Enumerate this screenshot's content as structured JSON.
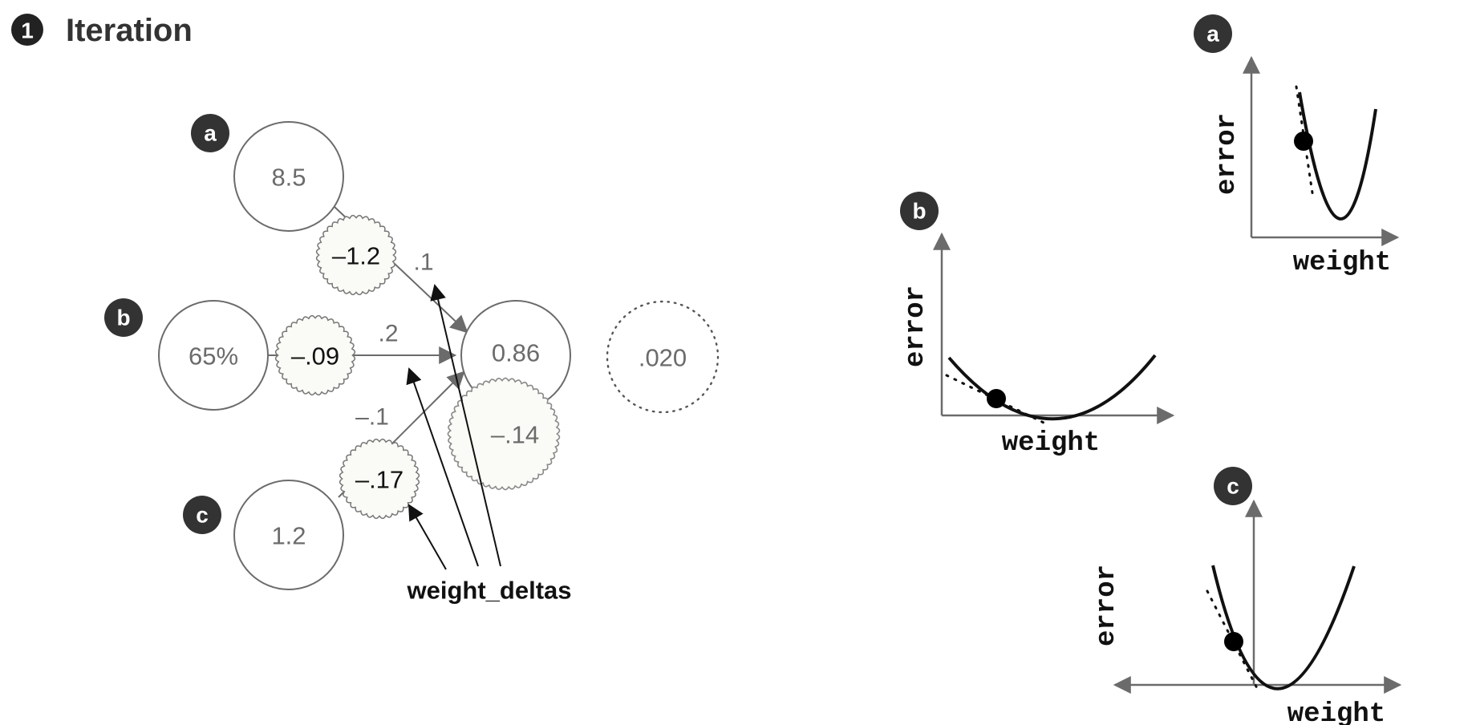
{
  "header": {
    "step_number": "1",
    "title": "Iteration"
  },
  "network": {
    "inputs": [
      {
        "badge": "a",
        "value": "8.5"
      },
      {
        "badge": "b",
        "value": "65%"
      },
      {
        "badge": "c",
        "value": "1.2"
      }
    ],
    "weight_deltas": [
      "–1.2",
      "–.09",
      "–.17"
    ],
    "weights": [
      ".1",
      ".2",
      "–.1"
    ],
    "output": {
      "prediction": "0.86",
      "delta": "–.14",
      "error": ".020"
    },
    "caption": "weight_deltas"
  },
  "plots": [
    {
      "badge": "a",
      "ylabel": "error",
      "xlabel": "weight"
    },
    {
      "badge": "b",
      "ylabel": "error",
      "xlabel": "weight"
    },
    {
      "badge": "c",
      "ylabel": "error",
      "xlabel": "weight"
    }
  ],
  "colors": {
    "badge": "#333333",
    "stroke": "#6b6b6b",
    "delta_fill": "#fafaf6",
    "ink": "#111111"
  }
}
